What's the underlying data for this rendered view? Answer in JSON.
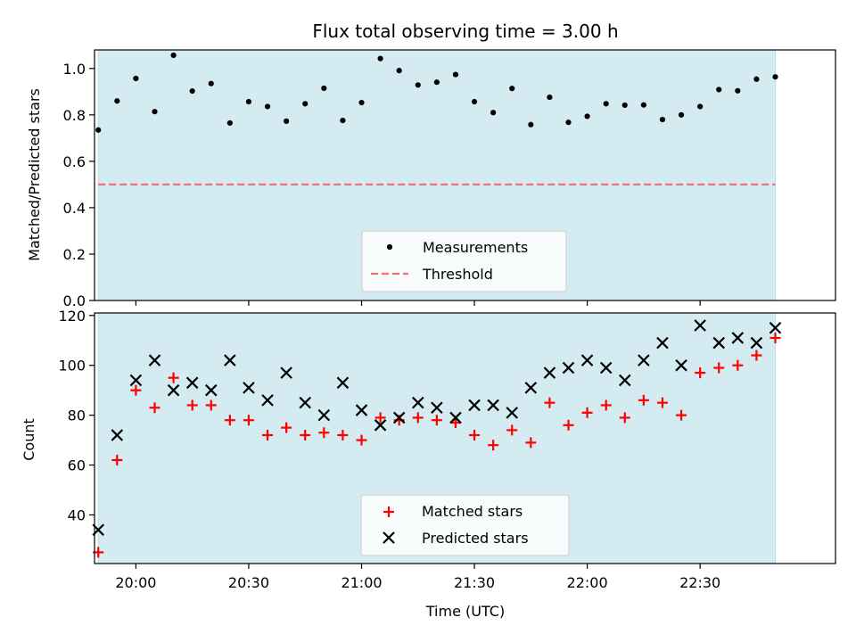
{
  "chart_data": [
    {
      "type": "scatter",
      "title": "Flux total observing time = 3.00 h",
      "xlabel": "",
      "ylabel": "Matched/Predicted stars",
      "xlim": [
        "19:49",
        "23:06"
      ],
      "ylim": [
        0,
        1.08
      ],
      "yticks": [
        "0.0",
        "0.2",
        "0.4",
        "0.6",
        "0.8",
        "1.0"
      ],
      "observing_window": [
        "19:50",
        "22:50"
      ],
      "threshold": 0.5,
      "legend_position": "bottom-center",
      "series": [
        {
          "name": "Measurements",
          "marker": "dot",
          "color": "#000000",
          "x": [
            "19:50",
            "19:55",
            "20:00",
            "20:05",
            "20:10",
            "20:15",
            "20:20",
            "20:25",
            "20:30",
            "20:35",
            "20:40",
            "20:45",
            "20:50",
            "20:55",
            "21:00",
            "21:05",
            "21:10",
            "21:15",
            "21:20",
            "21:25",
            "21:30",
            "21:35",
            "21:40",
            "21:45",
            "21:50",
            "21:55",
            "22:00",
            "22:05",
            "22:10",
            "22:15",
            "22:20",
            "22:25",
            "22:30",
            "22:35",
            "22:40",
            "22:45",
            "22:50"
          ],
          "y": [
            0.735,
            0.86,
            0.957,
            0.814,
            1.057,
            0.903,
            0.935,
            0.765,
            0.857,
            0.836,
            0.773,
            0.848,
            0.915,
            0.776,
            0.853,
            1.043,
            0.991,
            0.929,
            0.941,
            0.974,
            0.857,
            0.81,
            0.914,
            0.758,
            0.876,
            0.768,
            0.794,
            0.848,
            0.842,
            0.843,
            0.78,
            0.8,
            0.836,
            0.909,
            0.904,
            0.954,
            0.964
          ]
        },
        {
          "name": "Threshold",
          "style": "dashed",
          "color": "#f07272",
          "y": 0.5
        }
      ]
    },
    {
      "type": "scatter",
      "title": "",
      "xlabel": "Time (UTC)",
      "ylabel": "Count",
      "xlim": [
        "19:49",
        "23:06"
      ],
      "ylim": [
        20.5,
        121
      ],
      "xticks": [
        "20:00",
        "20:30",
        "21:00",
        "21:30",
        "22:00",
        "22:30"
      ],
      "yticks": [
        "40",
        "60",
        "80",
        "100",
        "120"
      ],
      "observing_window": [
        "19:50",
        "22:50"
      ],
      "legend_position": "bottom-center",
      "x": [
        "19:50",
        "19:55",
        "20:00",
        "20:05",
        "20:10",
        "20:15",
        "20:20",
        "20:25",
        "20:30",
        "20:35",
        "20:40",
        "20:45",
        "20:50",
        "20:55",
        "21:00",
        "21:05",
        "21:10",
        "21:15",
        "21:20",
        "21:25",
        "21:30",
        "21:35",
        "21:40",
        "21:45",
        "21:50",
        "21:55",
        "22:00",
        "22:05",
        "22:10",
        "22:15",
        "22:20",
        "22:25",
        "22:30",
        "22:35",
        "22:40",
        "22:45",
        "22:50"
      ],
      "series": [
        {
          "name": "Matched stars",
          "marker": "plus",
          "color": "#ff0000",
          "values": [
            25,
            62,
            90,
            83,
            95,
            84,
            84,
            78,
            78,
            72,
            75,
            72,
            73,
            72,
            70,
            79,
            78,
            79,
            78,
            77,
            72,
            68,
            74,
            69,
            85,
            76,
            81,
            84,
            79,
            86,
            85,
            80,
            97,
            99,
            100,
            104,
            111
          ]
        },
        {
          "name": "Predicted stars",
          "marker": "x",
          "color": "#000000",
          "values": [
            34,
            72,
            94,
            102,
            90,
            93,
            90,
            102,
            91,
            86,
            97,
            85,
            80,
            93,
            82,
            76,
            79,
            85,
            83,
            79,
            84,
            84,
            81,
            91,
            97,
            99,
            102,
            99,
            94,
            102,
            109,
            100,
            116,
            109,
            111,
            109,
            115
          ]
        }
      ]
    }
  ],
  "colors": {
    "window_fill": "#d4ebf1",
    "window_edge": "#b8dce6",
    "threshold": "#f07272",
    "matched": "#ff0000",
    "predicted": "#000000",
    "measurement": "#000000"
  }
}
